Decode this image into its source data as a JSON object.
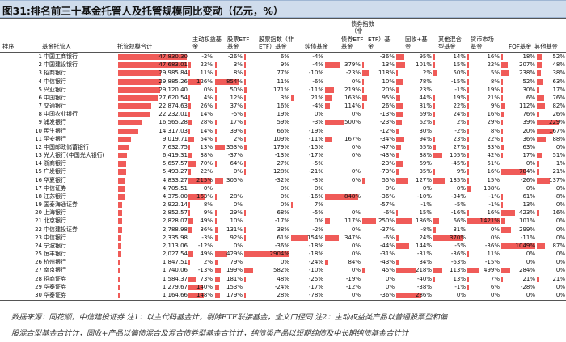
{
  "title": "图31:排名前三十基金托管人及托管规模同比变动（亿元，%）",
  "headers": {
    "rank": "排序",
    "custodian": "基金托管人",
    "total": "托管规模合计",
    "equity": [
      "主动权益基",
      "金"
    ],
    "stock_etf": [
      "股票ETF",
      "基金"
    ],
    "stock_index": [
      "股票指数（非",
      "ETF）基金"
    ],
    "pure_bond": [
      "纯债基金"
    ],
    "bond_index_top": [
      "债券指数",
      "（非"
    ],
    "bond_index_bottom": [
      "ETF）基",
      "金"
    ],
    "bond_etf": [
      "债券ETF",
      "基金"
    ],
    "fixed_plus": [
      "固收+基",
      "金"
    ],
    "mixed": [
      "其他混合",
      "型基金"
    ],
    "money": [
      "货币市场",
      "基金"
    ],
    "fof": [
      "FOF基金"
    ],
    "other": [
      "其他基金"
    ]
  },
  "chart_data": {
    "type": "table",
    "title": "排名前三十基金托管人及托管规模同比变动（亿元，%）",
    "columns": [
      "排序",
      "基金托管人",
      "托管规模合计",
      "主动权益基金",
      "股票ETF基金",
      "股票指数（非ETF）基金",
      "纯债基金",
      "债券指数（非ETF）基金",
      "债券ETF基金",
      "固收+基金",
      "其他混合型基金",
      "货币市场基金",
      "FOF基金",
      "其他基金"
    ],
    "max_total": 47830.3,
    "rows": [
      {
        "rank": "1",
        "name": "中国工商银行",
        "total": "47,830.30",
        "v": [
          -2,
          -26,
          6,
          -4,
          null,
          -36,
          95,
          14,
          16,
          18,
          52
        ]
      },
      {
        "rank": "2",
        "name": "中国建设银行",
        "total": "47,683.01",
        "v": [
          22,
          3,
          9,
          -4,
          379,
          13,
          101,
          15,
          22,
          207,
          48
        ]
      },
      {
        "rank": "3",
        "name": "招商银行",
        "total": "29,985.84",
        "v": [
          11,
          8,
          77,
          -10,
          -23,
          118,
          2,
          50,
          5,
          238,
          38
        ]
      },
      {
        "rank": "4",
        "name": "中信银行",
        "total": "29,885.26",
        "v": [
          126,
          854,
          11,
          -6,
          0,
          10,
          78,
          -15,
          8,
          52,
          63
        ]
      },
      {
        "rank": "5",
        "name": "兴业银行",
        "total": "29,120.40",
        "v": [
          0,
          50,
          171,
          -11,
          219,
          20,
          23,
          -1,
          19,
          30,
          17
        ]
      },
      {
        "rank": "6",
        "name": "中国银行",
        "total": "27,620.54",
        "v": [
          4,
          12,
          3,
          21,
          163,
          95,
          44,
          19,
          21,
          6,
          76
        ]
      },
      {
        "rank": "7",
        "name": "交通银行",
        "total": "22,874.63",
        "v": [
          26,
          37,
          16,
          -4,
          114,
          26,
          81,
          22,
          9,
          112,
          82
        ]
      },
      {
        "rank": "8",
        "name": "中国农业银行",
        "total": "22,232.01",
        "v": [
          14,
          -5,
          19,
          0,
          0,
          -13,
          69,
          24,
          16,
          76,
          26
        ]
      },
      {
        "rank": "9",
        "name": "浦发银行",
        "total": "16,565.28",
        "v": [
          28,
          17,
          59,
          -3,
          500,
          -23,
          62,
          2,
          29,
          39,
          229
        ]
      },
      {
        "rank": "10",
        "name": "民生银行",
        "total": "14,317.03",
        "v": [
          14,
          39,
          66,
          -19,
          null,
          -12,
          30,
          -2,
          8,
          20,
          167
        ]
      },
      {
        "rank": "11",
        "name": "平安银行",
        "total": "9,019.71",
        "v": [
          54,
          2,
          109,
          -11,
          167,
          -34,
          94,
          23,
          22,
          36,
          88
        ]
      },
      {
        "rank": "12",
        "name": "中国邮政储蓄银行",
        "total": "7,632.75",
        "v": [
          13,
          353,
          179,
          -15,
          0,
          -47,
          55,
          27,
          33,
          63,
          0
        ]
      },
      {
        "rank": "13",
        "name": "光大银行(中国光大银行)",
        "total": "6,419.31",
        "v": [
          38,
          -37,
          -13,
          -17,
          0,
          -43,
          38,
          105,
          42,
          17,
          51
        ]
      },
      {
        "rank": "14",
        "name": "浙商银行",
        "total": "5,657.57",
        "v": [
          70,
          64,
          27,
          -5,
          null,
          -23,
          69,
          -45,
          51,
          0,
          1
        ]
      },
      {
        "rank": "15",
        "name": "广发银行",
        "total": "5,493.27",
        "v": [
          22,
          0,
          128,
          -21,
          0,
          -73,
          35,
          9,
          16,
          784,
          21
        ]
      },
      {
        "rank": "16",
        "name": "华夏银行",
        "total": "4,833.27",
        "v": [
          215,
          305,
          -32,
          -3,
          0,
          55,
          127,
          135,
          15,
          -26,
          137
        ]
      },
      {
        "rank": "17",
        "name": "中信证券",
        "total": "4,705.51",
        "v": [
          0,
          null,
          0,
          0,
          null,
          0,
          0,
          0,
          138,
          0,
          0
        ]
      },
      {
        "rank": "18",
        "name": "江苏银行",
        "total": "4,375.00",
        "v": [
          163,
          28,
          0,
          -16,
          848,
          -36,
          -10,
          -34,
          -1,
          61,
          -8
        ]
      },
      {
        "rank": "19",
        "name": "国泰海通证券",
        "total": "2,922.14",
        "v": [
          8,
          0,
          0,
          7,
          null,
          -57,
          -1,
          -5,
          -1,
          13,
          0
        ]
      },
      {
        "rank": "20",
        "name": "上海银行",
        "total": "2,852.57",
        "v": [
          9,
          29,
          68,
          -5,
          0,
          -6,
          15,
          -16,
          16,
          423,
          16
        ]
      },
      {
        "rank": "21",
        "name": "北京银行",
        "total": "2,828.07",
        "v": [
          49,
          10,
          -17,
          0,
          117,
          250,
          186,
          66,
          1421,
          101,
          0
        ]
      },
      {
        "rank": "22",
        "name": "中信建投证券",
        "total": "2,788.98",
        "v": [
          36,
          131,
          38,
          -2,
          0,
          -37,
          -8,
          31,
          0,
          299,
          0
        ]
      },
      {
        "rank": "23",
        "name": "中信银行",
        "total": "2,335.98",
        "v": [
          -3,
          92,
          61,
          154,
          347,
          -6,
          24,
          370,
          0,
          -11,
          0
        ]
      },
      {
        "rank": "24",
        "name": "宁波银行",
        "total": "2,113.06",
        "v": [
          -12,
          0,
          -36,
          -18,
          0,
          -44,
          144,
          -5,
          -36,
          1049,
          87
        ]
      },
      {
        "rank": "25",
        "name": "恒丰银行",
        "total": "2,027.54",
        "v": [
          49,
          429,
          2904,
          -18,
          0,
          -31,
          -31,
          -36,
          11,
          0,
          0
        ]
      },
      {
        "rank": "26",
        "name": "杭州银行",
        "total": "1,847.51",
        "v": [
          2,
          79,
          0,
          -24,
          84,
          -43,
          34,
          -63,
          -15,
          0,
          0
        ]
      },
      {
        "rank": "27",
        "name": "南京银行",
        "total": "1,740.06",
        "v": [
          -13,
          199,
          582,
          -10,
          0,
          45,
          218,
          113,
          499,
          284,
          0
        ]
      },
      {
        "rank": "28",
        "name": "招商证券",
        "total": "1,584.37",
        "v": [
          73,
          181,
          48,
          -25,
          -19,
          0,
          -40,
          13,
          7,
          21,
          21
        ]
      },
      {
        "rank": "29",
        "name": "华泰证券",
        "total": "1,279.67",
        "v": [
          140,
          153,
          -24,
          -17,
          -12,
          0,
          -38,
          -1,
          6,
          -28,
          0
        ]
      },
      {
        "rank": "30",
        "name": "华泰证券",
        "total": "1,164.66",
        "v": [
          148,
          179,
          28,
          -78,
          0,
          -36,
          286,
          0,
          0,
          0,
          0
        ]
      }
    ]
  },
  "footer_line1": "数据来源：同花顺，中信建投证券  注1：以主代码基金计，剔除ETF联接基金，全文口径同  注2：主动权益类产品以普通股票型和偏",
  "footer_line2": "股混合型基金合计计，固收+产品以偏债混合及混合债券型基金合计计，纯债类产品以短期纯债及中长期纯债基金合计计"
}
